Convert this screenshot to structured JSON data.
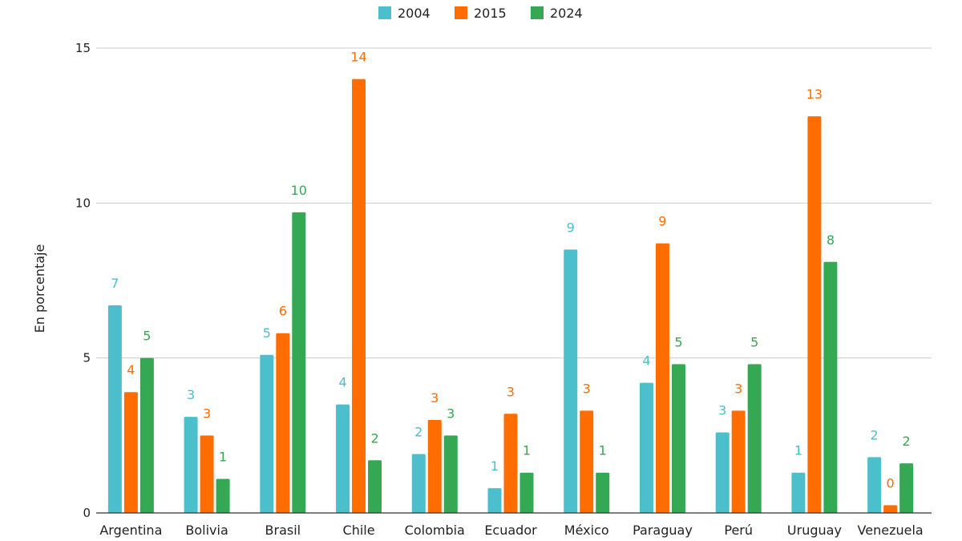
{
  "chart_data": {
    "type": "bar",
    "title": "",
    "xlabel": "",
    "ylabel": "En porcentaje",
    "ylim": [
      0,
      15
    ],
    "yticks": [
      0,
      5,
      10,
      15
    ],
    "grid": true,
    "legend_position": "top-center",
    "categories": [
      "Argentina",
      "Bolivia",
      "Brasil",
      "Chile",
      "Colombia",
      "Ecuador",
      "México",
      "Paraguay",
      "Perú",
      "Uruguay",
      "Venezuela"
    ],
    "series": [
      {
        "name": "2004",
        "color": "#4bbfcc",
        "values": [
          6.7,
          3.1,
          5.1,
          3.5,
          1.9,
          0.8,
          8.5,
          4.2,
          2.6,
          1.3,
          1.8
        ],
        "labels": [
          "7",
          "3",
          "5",
          "4",
          "2",
          "1",
          "9",
          "4",
          "3",
          "1",
          "2"
        ]
      },
      {
        "name": "2015",
        "color": "#ff6d01",
        "values": [
          3.9,
          2.5,
          5.8,
          14.0,
          3.0,
          3.2,
          3.3,
          8.7,
          3.3,
          12.8,
          0.25
        ],
        "labels": [
          "4",
          "3",
          "6",
          "14",
          "3",
          "3",
          "3",
          "9",
          "3",
          "13",
          "0"
        ]
      },
      {
        "name": "2024",
        "color": "#34a853",
        "values": [
          5.0,
          1.1,
          9.7,
          1.7,
          2.5,
          1.3,
          1.3,
          4.8,
          4.8,
          8.1,
          1.6
        ],
        "labels": [
          "5",
          "1",
          "10",
          "2",
          "3",
          "1",
          "1",
          "5",
          "5",
          "8",
          "2"
        ]
      }
    ]
  }
}
